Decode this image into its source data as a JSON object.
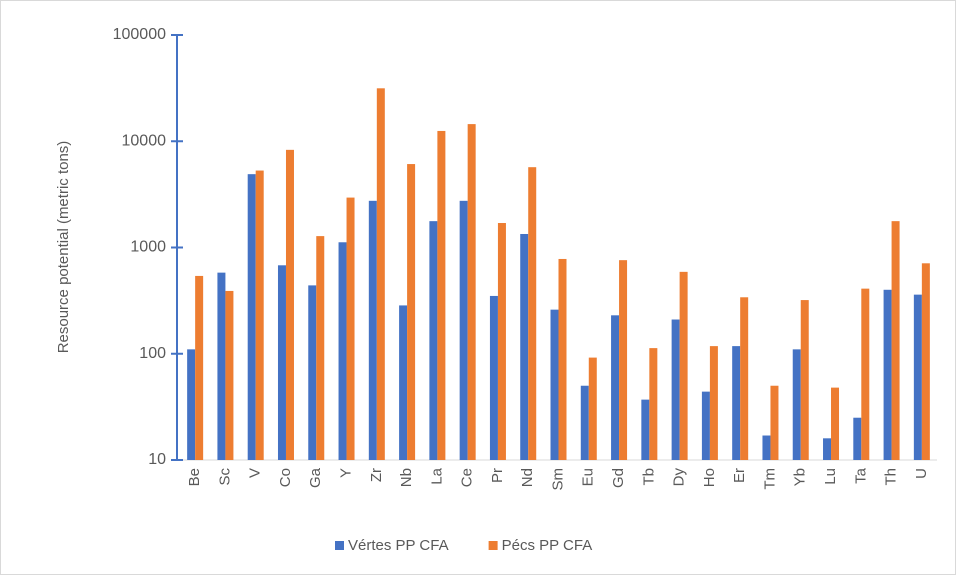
{
  "chart_data": {
    "type": "bar",
    "log_scale": true,
    "grid": false,
    "legend": "bottom",
    "y_label": "Resource potential (metric tons)",
    "categories": [
      "Be",
      "Sc",
      "V",
      "Co",
      "Ga",
      "Y",
      "Zr",
      "Nb",
      "La",
      "Ce",
      "Pr",
      "Nd",
      "Sm",
      "Eu",
      "Gd",
      "Tb",
      "Dy",
      "Ho",
      "Er",
      "Tm",
      "Yb",
      "Lu",
      "Ta",
      "Th",
      "U"
    ],
    "series": [
      {
        "name": "Vértes PP CFA",
        "color": "#4472c4",
        "values": [
          110,
          580,
          4900,
          680,
          440,
          1120,
          2750,
          285,
          1770,
          2750,
          350,
          1340,
          260,
          50,
          230,
          37,
          210,
          44,
          118,
          17,
          110,
          16,
          25,
          400,
          360
        ]
      },
      {
        "name": "Pécs PP CFA",
        "color": "#ed7d31",
        "values": [
          540,
          390,
          5300,
          8300,
          1280,
          2950,
          31500,
          6100,
          12500,
          14500,
          1700,
          5700,
          780,
          92,
          760,
          113,
          590,
          118,
          340,
          50,
          320,
          48,
          410,
          1770,
          710
        ]
      }
    ],
    "ylim": [
      10,
      100000
    ],
    "yticks": [
      10,
      100,
      1000,
      10000,
      100000
    ]
  }
}
